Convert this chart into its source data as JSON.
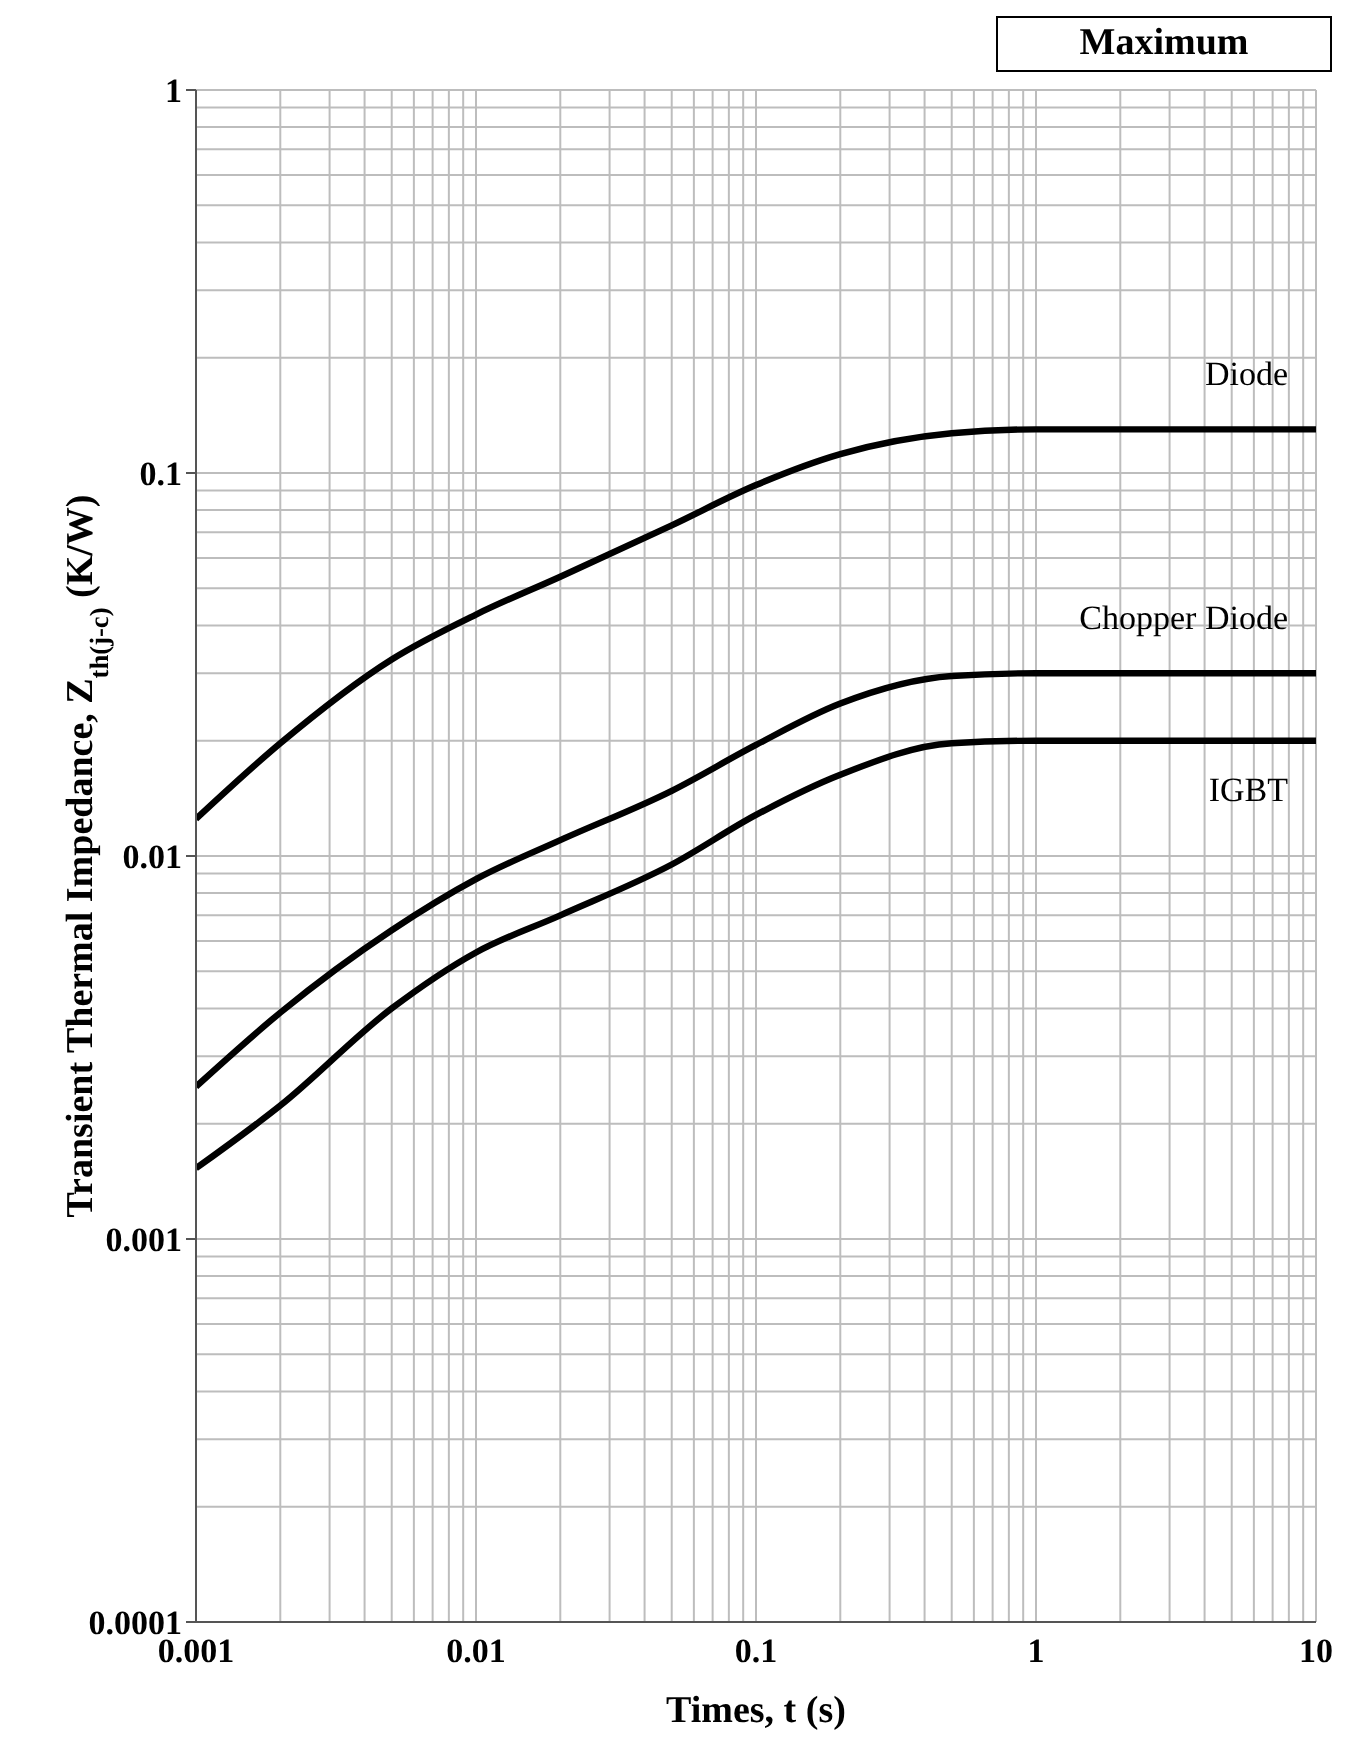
{
  "chart_data": {
    "type": "line",
    "xlabel": "Times, t (s)",
    "ylabel": "Transient Thermal Impedance, Z$_{th(j-c)}$ (K/W)",
    "log": "xy",
    "grid": true,
    "legend": false,
    "line_style": "solid",
    "marker": "none",
    "xlim": [
      0.001,
      10
    ],
    "xticks": [
      0.001,
      0.01,
      0.1,
      1,
      10
    ],
    "ylim": [
      0.0001,
      1
    ],
    "yticks": [
      0.0001,
      0.001,
      0.01,
      0.1,
      1
    ],
    "series": [
      {
        "name": "Diode",
        "color": "#000000",
        "x": [
          0.001,
          0.002,
          0.005,
          0.01,
          0.02,
          0.05,
          0.1,
          0.2,
          0.5,
          1,
          10
        ],
        "values": [
          0.0125,
          0.0197,
          0.0326,
          0.0427,
          0.0536,
          0.073,
          0.093,
          0.112,
          0.127,
          0.13,
          0.13
        ]
      },
      {
        "name": "Chopper Diode",
        "color": "#000000",
        "x": [
          0.001,
          0.002,
          0.005,
          0.01,
          0.02,
          0.05,
          0.1,
          0.2,
          0.5,
          1,
          10
        ],
        "values": [
          0.0025,
          0.0039,
          0.0064,
          0.0087,
          0.011,
          0.0148,
          0.0195,
          0.025,
          0.0295,
          0.03,
          0.03
        ]
      },
      {
        "name": "IGBT",
        "color": "#000000",
        "x": [
          0.001,
          0.002,
          0.005,
          0.01,
          0.02,
          0.05,
          0.1,
          0.2,
          0.5,
          1,
          10
        ],
        "values": [
          0.00153,
          0.00223,
          0.004,
          0.0056,
          0.007,
          0.0095,
          0.0128,
          0.0163,
          0.0197,
          0.02,
          0.02
        ]
      }
    ],
    "annotations": [
      "Maximum"
    ]
  }
}
